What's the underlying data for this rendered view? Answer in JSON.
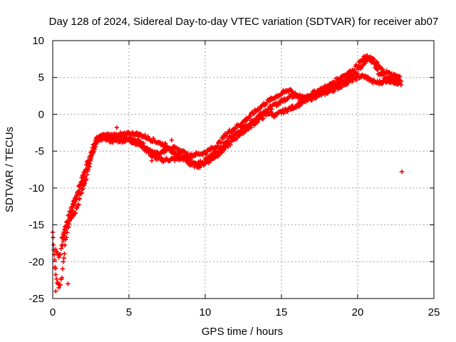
{
  "chart_data": {
    "type": "scatter",
    "title": "Day 128 of 2024, Sidereal Day-to-day VTEC variation (SDTVAR) for receiver ab07",
    "xlabel": "GPS time / hours",
    "ylabel": "SDTVAR / TECUs",
    "xlim": [
      0,
      25
    ],
    "ylim": [
      -25,
      10
    ],
    "xticks": [
      "0",
      "5",
      "10",
      "15",
      "20",
      "25"
    ],
    "yticks": [
      "-25",
      "-20",
      "-15",
      "-10",
      "-5",
      "0",
      "5",
      "10"
    ],
    "grid": true,
    "marker": "plus",
    "series": [
      {
        "name": "SDTVAR",
        "color": "#ff0000",
        "bands": [
          {
            "offset": 0.0,
            "points": [
              [
                0.0,
                -16.0
              ],
              [
                0.05,
                -17.5
              ],
              [
                0.1,
                -19.0
              ],
              [
                0.15,
                -20.5
              ],
              [
                0.2,
                -21.8
              ],
              [
                0.3,
                -22.8
              ],
              [
                0.4,
                -23.3
              ],
              [
                0.5,
                -23.0
              ],
              [
                0.6,
                -22.0
              ],
              [
                0.7,
                -20.0
              ],
              [
                0.8,
                -18.0
              ],
              [
                0.9,
                -16.5
              ],
              [
                1.0,
                -15.5
              ],
              [
                1.1,
                -14.5
              ],
              [
                1.2,
                -14.0
              ],
              [
                1.3,
                -13.8
              ],
              [
                1.5,
                -13.2
              ],
              [
                1.7,
                -12.0
              ],
              [
                1.8,
                -11.0
              ],
              [
                1.9,
                -10.5
              ],
              [
                2.0,
                -9.8
              ],
              [
                2.1,
                -9.2
              ],
              [
                2.2,
                -8.5
              ],
              [
                2.3,
                -7.8
              ],
              [
                2.4,
                -7.0
              ],
              [
                2.5,
                -6.0
              ],
              [
                2.6,
                -5.3
              ],
              [
                2.7,
                -4.8
              ],
              [
                2.8,
                -4.3
              ],
              [
                2.9,
                -4.0
              ],
              [
                3.0,
                -3.6
              ],
              [
                3.1,
                -3.3
              ],
              [
                3.2,
                -3.1
              ],
              [
                3.3,
                -3.0
              ],
              [
                3.5,
                -3.1
              ],
              [
                3.7,
                -3.2
              ],
              [
                3.9,
                -3.3
              ],
              [
                4.1,
                -3.2
              ],
              [
                4.3,
                -3.0
              ],
              [
                4.5,
                -2.9
              ],
              [
                4.7,
                -3.0
              ],
              [
                4.9,
                -3.2
              ],
              [
                5.1,
                -3.3
              ],
              [
                5.3,
                -3.4
              ],
              [
                5.5,
                -3.6
              ],
              [
                5.7,
                -3.8
              ],
              [
                5.9,
                -4.0
              ],
              [
                6.1,
                -4.4
              ],
              [
                6.3,
                -4.8
              ],
              [
                6.5,
                -5.2
              ],
              [
                6.8,
                -5.3
              ],
              [
                7.0,
                -5.5
              ],
              [
                7.2,
                -5.2
              ],
              [
                7.4,
                -4.8
              ],
              [
                7.6,
                -4.8
              ],
              [
                7.8,
                -5.0
              ],
              [
                8.0,
                -5.3
              ],
              [
                8.2,
                -5.5
              ],
              [
                8.4,
                -5.7
              ],
              [
                8.6,
                -5.9
              ],
              [
                8.8,
                -6.1
              ],
              [
                9.0,
                -6.3
              ],
              [
                9.2,
                -6.5
              ],
              [
                9.4,
                -6.6
              ],
              [
                9.6,
                -6.6
              ],
              [
                9.8,
                -6.5
              ],
              [
                10.0,
                -6.2
              ],
              [
                10.2,
                -5.8
              ],
              [
                10.4,
                -5.6
              ],
              [
                10.6,
                -5.4
              ],
              [
                10.8,
                -5.0
              ],
              [
                11.0,
                -4.6
              ],
              [
                11.2,
                -4.2
              ],
              [
                11.4,
                -3.8
              ],
              [
                11.6,
                -3.2
              ],
              [
                11.8,
                -2.9
              ],
              [
                12.0,
                -2.7
              ],
              [
                12.2,
                -2.3
              ],
              [
                12.4,
                -2.0
              ],
              [
                12.6,
                -1.7
              ],
              [
                12.8,
                -1.4
              ],
              [
                13.0,
                -1.1
              ],
              [
                13.2,
                -0.8
              ],
              [
                13.4,
                -0.4
              ],
              [
                13.6,
                0.0
              ],
              [
                13.8,
                0.3
              ],
              [
                14.0,
                0.6
              ],
              [
                14.2,
                0.8
              ],
              [
                14.4,
                1.0
              ],
              [
                14.6,
                1.3
              ],
              [
                14.8,
                1.5
              ],
              [
                15.0,
                1.8
              ],
              [
                15.2,
                2.0
              ],
              [
                15.4,
                2.3
              ],
              [
                15.6,
                2.5
              ],
              [
                15.8,
                2.6
              ],
              [
                16.0,
                2.7
              ],
              [
                16.2,
                2.5
              ],
              [
                16.4,
                2.3
              ],
              [
                16.6,
                2.2
              ],
              [
                16.8,
                2.3
              ],
              [
                17.0,
                2.5
              ],
              [
                17.2,
                2.7
              ],
              [
                17.4,
                2.9
              ],
              [
                17.6,
                3.0
              ],
              [
                17.8,
                3.2
              ],
              [
                18.0,
                3.4
              ],
              [
                18.2,
                3.6
              ],
              [
                18.4,
                3.7
              ],
              [
                18.6,
                3.9
              ],
              [
                18.8,
                4.2
              ],
              [
                19.0,
                4.5
              ],
              [
                19.2,
                4.8
              ],
              [
                19.4,
                5.0
              ],
              [
                19.6,
                5.2
              ],
              [
                19.8,
                5.5
              ],
              [
                20.0,
                5.8
              ],
              [
                20.2,
                6.5
              ],
              [
                20.4,
                7.0
              ],
              [
                20.6,
                7.5
              ],
              [
                20.8,
                7.6
              ],
              [
                21.0,
                7.0
              ],
              [
                21.2,
                6.2
              ],
              [
                21.4,
                5.6
              ],
              [
                21.6,
                5.3
              ],
              [
                21.8,
                5.0
              ],
              [
                22.0,
                4.9
              ],
              [
                22.2,
                4.8
              ],
              [
                22.4,
                4.6
              ],
              [
                22.6,
                4.5
              ],
              [
                22.8,
                4.5
              ],
              [
                22.9,
                4.7
              ]
            ]
          },
          {
            "offset": -0.8,
            "points": [
              [
                0.2,
                -18.5
              ],
              [
                0.4,
                -19.5
              ],
              [
                0.6,
                -18.0
              ],
              [
                0.8,
                -16.0
              ],
              [
                1.0,
                -14.5
              ],
              [
                2.4,
                -6.5
              ],
              [
                2.6,
                -5.0
              ],
              [
                2.8,
                -4.0
              ],
              [
                3.0,
                -3.3
              ],
              [
                3.4,
                -3.2
              ],
              [
                3.8,
                -3.6
              ],
              [
                5.0,
                -3.5
              ],
              [
                5.8,
                -4.2
              ],
              [
                6.6,
                -5.8
              ],
              [
                7.2,
                -6.2
              ],
              [
                8.6,
                -6.0
              ],
              [
                9.0,
                -6.8
              ],
              [
                9.6,
                -7.0
              ],
              [
                10.2,
                -6.4
              ],
              [
                11.0,
                -5.2
              ],
              [
                11.6,
                -4.0
              ],
              [
                12.2,
                -2.8
              ],
              [
                13.0,
                -1.6
              ],
              [
                13.6,
                -0.6
              ],
              [
                14.2,
                0.2
              ],
              [
                14.6,
                -0.2
              ],
              [
                15.0,
                0.3
              ],
              [
                15.6,
                0.8
              ],
              [
                16.0,
                1.2
              ],
              [
                16.6,
                1.8
              ],
              [
                17.2,
                2.4
              ],
              [
                18.0,
                3.0
              ],
              [
                18.6,
                3.5
              ],
              [
                19.2,
                4.2
              ],
              [
                20.2,
                5.2
              ],
              [
                20.6,
                5.0
              ],
              [
                21.0,
                4.4
              ],
              [
                21.4,
                4.3
              ],
              [
                22.0,
                4.6
              ],
              [
                22.6,
                4.3
              ],
              [
                22.9,
                4.1
              ]
            ]
          },
          {
            "offset": 0.8,
            "points": [
              [
                0.6,
                -17.0
              ],
              [
                0.8,
                -15.5
              ],
              [
                1.0,
                -14.0
              ],
              [
                2.8,
                -3.5
              ],
              [
                3.2,
                -2.9
              ],
              [
                4.2,
                -2.8
              ],
              [
                5.4,
                -2.6
              ],
              [
                6.0,
                -3.0
              ],
              [
                7.6,
                -4.4
              ],
              [
                8.2,
                -4.8
              ],
              [
                9.0,
                -5.6
              ],
              [
                10.0,
                -5.2
              ],
              [
                10.8,
                -4.2
              ],
              [
                11.4,
                -2.6
              ],
              [
                12.4,
                -1.2
              ],
              [
                13.4,
                0.6
              ],
              [
                14.0,
                1.6
              ],
              [
                14.6,
                2.4
              ],
              [
                15.2,
                3.0
              ],
              [
                15.6,
                3.4
              ],
              [
                16.2,
                2.0
              ],
              [
                17.0,
                2.8
              ],
              [
                18.2,
                4.0
              ],
              [
                19.0,
                5.2
              ],
              [
                19.6,
                5.8
              ],
              [
                20.4,
                7.6
              ],
              [
                20.8,
                7.8
              ],
              [
                21.2,
                7.0
              ],
              [
                21.6,
                6.0
              ],
              [
                22.2,
                5.4
              ],
              [
                22.8,
                5.0
              ]
            ]
          }
        ],
        "outliers": [
          [
            4.2,
            -1.8
          ],
          [
            7.8,
            -3.5
          ],
          [
            6.5,
            -6.3
          ],
          [
            22.9,
            -7.8
          ],
          [
            0.2,
            -24.0
          ],
          [
            1.0,
            -23.0
          ]
        ]
      }
    ]
  }
}
